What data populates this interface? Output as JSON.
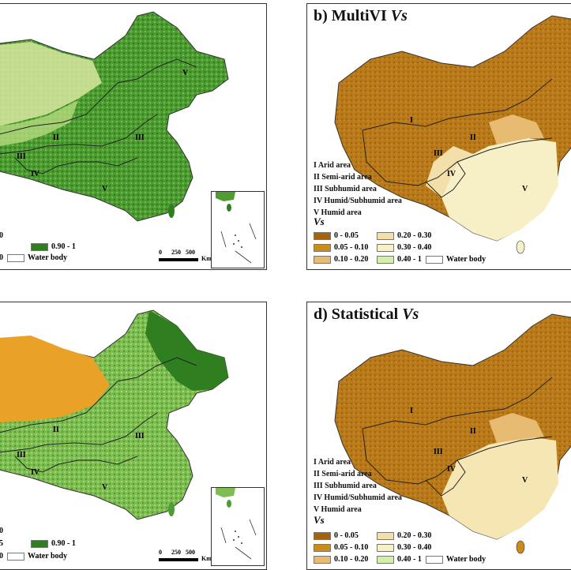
{
  "colors": {
    "ramp_green": [
      "#f3f0c6",
      "#d9eaa4",
      "#b7db7e",
      "#8cc65b",
      "#5da83b",
      "#2f7e1f"
    ],
    "ramp_brown": [
      "#a4640f",
      "#cb8c1c",
      "#e8bb72",
      "#f3dfa9",
      "#f7f0c7",
      "#d4efa6"
    ],
    "boundary": "#222222"
  },
  "panels": [
    {
      "id": "a",
      "title_prefix": "",
      "title_var": "",
      "zones": [],
      "legend_title": "",
      "legend": [
        {
          "label": "0",
          "color": "#f3f0c6"
        },
        {
          "label": "0.90 - 1",
          "color": "#2f7e1f"
        },
        {
          "label": "0",
          "color": "#b7db7e"
        },
        {
          "label": "Water body",
          "color": "#ffffff"
        }
      ],
      "scale": {
        "ticks": [
          "0",
          "250",
          "500"
        ],
        "unit": "Km"
      },
      "zone_labels": [
        "II",
        "III",
        "III",
        "IV",
        "V",
        "V"
      ]
    },
    {
      "id": "b",
      "title_prefix": "b) MultiVI",
      "title_var": "Vs",
      "zones": [
        "I   Arid area",
        "II   Semi-arid area",
        "III  Subhumid area",
        "IV   Humid/Subhumid area",
        "V    Humid area"
      ],
      "legend_title": "Vs",
      "legend": [
        {
          "label": "0 - 0.05",
          "color": "#a4640f"
        },
        {
          "label": "0.20 - 0.30",
          "color": "#f3dfa9"
        },
        {
          "label": "0.05 - 0.10",
          "color": "#cb8c1c"
        },
        {
          "label": "0.30 - 0.40",
          "color": "#f7f0c7"
        },
        {
          "label": "0.10 - 0.20",
          "color": "#e8bb72"
        },
        {
          "label": "0.40 - 1",
          "color": "#d4efa6"
        },
        {
          "label": "Water body",
          "color": "#ffffff"
        }
      ],
      "zone_labels": [
        "I",
        "II",
        "III",
        "IV",
        "V"
      ]
    },
    {
      "id": "c",
      "title_prefix": "",
      "title_var": "",
      "zones": [],
      "legend_title": "",
      "legend": [
        {
          "label": "0",
          "color": "#f3f0c6"
        },
        {
          "label": "5",
          "color": "#b7db7e"
        },
        {
          "label": "0.90 - 1",
          "color": "#2f7e1f"
        },
        {
          "label": "0",
          "color": "#8cc65b"
        },
        {
          "label": "Water body",
          "color": "#ffffff"
        }
      ],
      "scale": {
        "ticks": [
          "0",
          "250",
          "500"
        ],
        "unit": "Km"
      },
      "zone_labels": [
        "II",
        "III",
        "III",
        "IV",
        "V"
      ]
    },
    {
      "id": "d",
      "title_prefix": "d) Statistical",
      "title_var": "Vs",
      "zones": [
        "I   Arid area",
        "II   Semi-arid area",
        "III  Subhumid area",
        "IV   Humid/Subhumid area",
        "V    Humid area"
      ],
      "legend_title": "Vs",
      "legend": [
        {
          "label": "0 - 0.05",
          "color": "#a4640f"
        },
        {
          "label": "0.20 - 0.30",
          "color": "#f3dfa9"
        },
        {
          "label": "0.05 - 0.10",
          "color": "#cb8c1c"
        },
        {
          "label": "0.30 - 0.40",
          "color": "#f7f0c7"
        },
        {
          "label": "0.10 - 0.20",
          "color": "#e8bb72"
        },
        {
          "label": "0.40 - 1",
          "color": "#d4efa6"
        },
        {
          "label": "Water body",
          "color": "#ffffff"
        }
      ],
      "zone_labels": [
        "I",
        "II",
        "III",
        "IV",
        "V"
      ]
    }
  ]
}
